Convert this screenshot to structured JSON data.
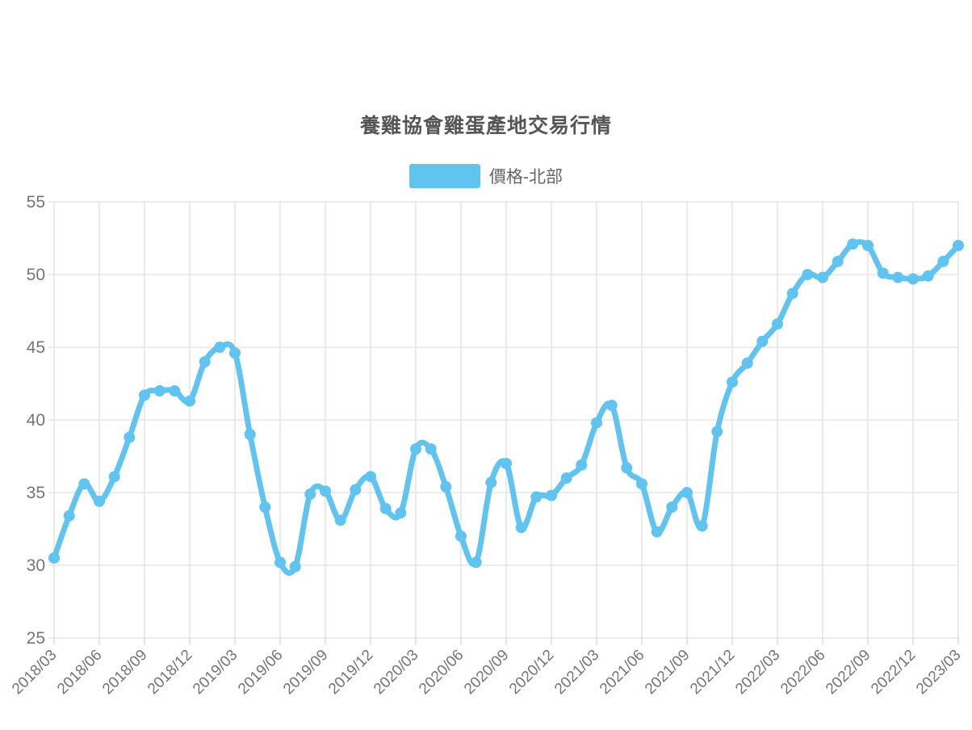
{
  "title": "養雞協會雞蛋產地交易行情",
  "legend": {
    "label": "價格-北部"
  },
  "colors": {
    "series": "#61c4f0",
    "grid": "#e0e0e0",
    "tick": "#d4d4d4",
    "axis_label": "#757575",
    "title": "#555555",
    "legend_text": "#666666",
    "background": "#ffffff"
  },
  "chart_data": {
    "type": "line",
    "title": "養雞協會雞蛋產地交易行情",
    "legend_entries": [
      "價格-北部"
    ],
    "legend_position": "top-center",
    "smooth": true,
    "grid": true,
    "ylim": [
      25,
      55
    ],
    "y_ticks": [
      55,
      50,
      45,
      40,
      35,
      30,
      25
    ],
    "x_tick_labels": [
      "2018/03",
      "2018/06",
      "2018/09",
      "2018/12",
      "2019/03",
      "2019/06",
      "2019/09",
      "2019/12",
      "2020/03",
      "2020/06",
      "2020/09",
      "2020/12",
      "2021/03",
      "2021/06",
      "2021/09",
      "2021/12",
      "2022/03",
      "2022/06",
      "2022/09",
      "2022/12",
      "2023/03"
    ],
    "x": [
      "2018/03",
      "2018/04",
      "2018/05",
      "2018/06",
      "2018/07",
      "2018/08",
      "2018/09",
      "2018/10",
      "2018/11",
      "2018/12",
      "2019/01",
      "2019/02",
      "2019/03",
      "2019/04",
      "2019/05",
      "2019/06",
      "2019/07",
      "2019/08",
      "2019/09",
      "2019/10",
      "2019/11",
      "2019/12",
      "2020/01",
      "2020/02",
      "2020/03",
      "2020/04",
      "2020/05",
      "2020/06",
      "2020/07",
      "2020/08",
      "2020/09",
      "2020/10",
      "2020/11",
      "2020/12",
      "2021/01",
      "2021/02",
      "2021/03",
      "2021/04",
      "2021/05",
      "2021/06",
      "2021/07",
      "2021/08",
      "2021/09",
      "2021/10",
      "2021/11",
      "2021/12",
      "2022/01",
      "2022/02",
      "2022/03",
      "2022/04",
      "2022/05",
      "2022/06",
      "2022/07",
      "2022/08",
      "2022/09",
      "2022/10",
      "2022/11",
      "2022/12",
      "2023/01",
      "2023/02",
      "2023/03"
    ],
    "series": [
      {
        "name": "價格-北部",
        "values": [
          30.5,
          33.4,
          35.6,
          34.4,
          36.1,
          38.8,
          41.7,
          42,
          42,
          41.3,
          44,
          45,
          44.6,
          39,
          34,
          30.2,
          29.9,
          34.9,
          35.1,
          33.1,
          35.2,
          36.1,
          33.9,
          33.6,
          38,
          38,
          35.4,
          32,
          30.2,
          35.7,
          37,
          32.6,
          34.7,
          34.8,
          36,
          36.9,
          39.8,
          41,
          36.7,
          35.6,
          32.3,
          34,
          35,
          32.7,
          39.2,
          42.6,
          43.9,
          45.4,
          46.6,
          48.7,
          50,
          49.8,
          50.9,
          52.1,
          52,
          50.1,
          49.8,
          49.7,
          49.9,
          50.9,
          52
        ]
      }
    ]
  }
}
